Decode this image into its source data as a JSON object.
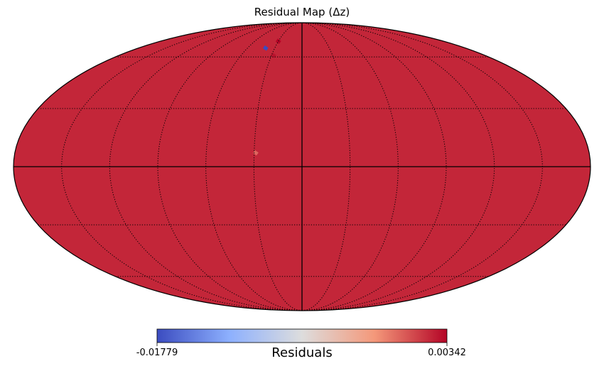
{
  "chart_data": {
    "type": "heatmap",
    "projection": "mollweide",
    "title": "Residual Map (Δz)",
    "background_value": 0.0022,
    "anomalies": [
      {
        "lon": -40,
        "lat": 66,
        "value": -0.01779
      },
      {
        "lon": -30,
        "lat": 71,
        "value": 0.00342
      },
      {
        "lon": -28,
        "lat": 61,
        "value": 0.0029
      },
      {
        "lon": -29,
        "lat": 7,
        "value": -0.0001
      }
    ],
    "graticule": {
      "lon_step_deg": 30,
      "lat_step_deg": 30,
      "style": "dotted",
      "meridian_main": 0,
      "equator_main": 0
    },
    "colorbar": {
      "label": "Residuals",
      "min": -0.01779,
      "max": 0.00342,
      "min_label": "-0.01779",
      "max_label": "0.00342",
      "cmap": [
        "#3b4cc0",
        "#8db0fe",
        "#dddddd",
        "#f4987a",
        "#b40426"
      ],
      "orientation": "horizontal",
      "placement": "bottom"
    }
  }
}
